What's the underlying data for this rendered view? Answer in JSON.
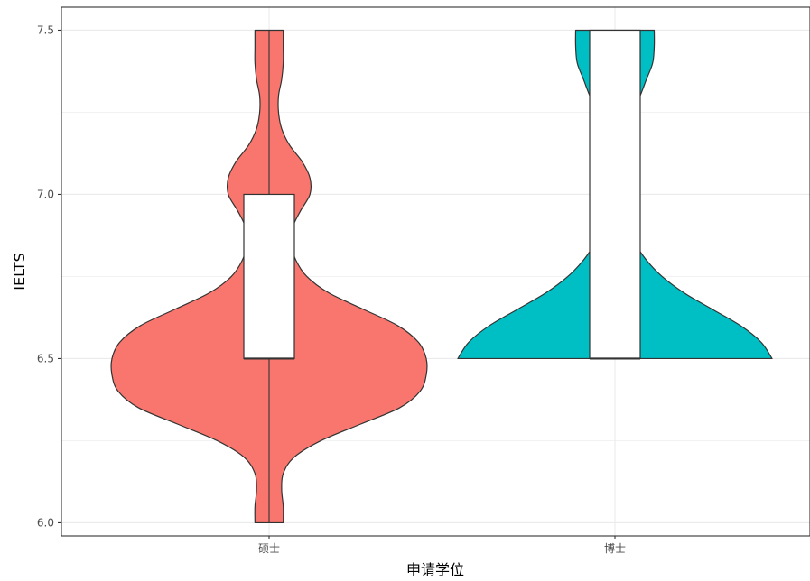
{
  "chart_data": {
    "type": "violin",
    "xlabel": "申请学位",
    "ylabel": "IELTS",
    "categories": [
      "硕士",
      "博士"
    ],
    "ylim": [
      5.96,
      7.57
    ],
    "yticks": [
      6.0,
      6.5,
      7.0,
      7.5
    ],
    "ytick_labels": [
      "6.0",
      "6.5",
      "7.0",
      "7.5"
    ],
    "grid": true,
    "series": [
      {
        "color": "#F8766D",
        "range": [
          6.0,
          7.5
        ],
        "box": {
          "min": 6.0,
          "q1": 6.5,
          "median": 6.5,
          "q3": 7.0,
          "max": 7.5
        },
        "density": [
          [
            6.0,
            0.09
          ],
          [
            6.05,
            0.09
          ],
          [
            6.1,
            0.08
          ],
          [
            6.15,
            0.09
          ],
          [
            6.2,
            0.16
          ],
          [
            6.25,
            0.33
          ],
          [
            6.3,
            0.58
          ],
          [
            6.35,
            0.83
          ],
          [
            6.4,
            0.96
          ],
          [
            6.45,
            1.0
          ],
          [
            6.5,
            1.0
          ],
          [
            6.55,
            0.95
          ],
          [
            6.6,
            0.82
          ],
          [
            6.65,
            0.6
          ],
          [
            6.7,
            0.38
          ],
          [
            6.75,
            0.24
          ],
          [
            6.8,
            0.17
          ],
          [
            6.85,
            0.14
          ],
          [
            6.9,
            0.15
          ],
          [
            6.95,
            0.2
          ],
          [
            7.0,
            0.26
          ],
          [
            7.05,
            0.26
          ],
          [
            7.1,
            0.21
          ],
          [
            7.15,
            0.13
          ],
          [
            7.2,
            0.08
          ],
          [
            7.25,
            0.06
          ],
          [
            7.3,
            0.06
          ],
          [
            7.35,
            0.08
          ],
          [
            7.4,
            0.09
          ],
          [
            7.45,
            0.09
          ],
          [
            7.5,
            0.09
          ]
        ]
      },
      {
        "color": "#00BFC4",
        "range": [
          6.5,
          7.5
        ],
        "box": {
          "min": 6.5,
          "q1": 6.5,
          "median": 6.5,
          "q3": 7.5,
          "max": 7.5
        },
        "density": [
          [
            6.5,
            1.0
          ],
          [
            6.55,
            0.93
          ],
          [
            6.6,
            0.8
          ],
          [
            6.65,
            0.62
          ],
          [
            6.7,
            0.44
          ],
          [
            6.75,
            0.3
          ],
          [
            6.8,
            0.2
          ],
          [
            6.85,
            0.13
          ],
          [
            6.9,
            0.08
          ],
          [
            6.95,
            0.04
          ],
          [
            7.0,
            0.0
          ],
          [
            7.05,
            0.0
          ],
          [
            7.1,
            0.0
          ],
          [
            7.15,
            0.0
          ],
          [
            7.2,
            0.02
          ],
          [
            7.25,
            0.11
          ],
          [
            7.3,
            0.16
          ],
          [
            7.35,
            0.2
          ],
          [
            7.4,
            0.24
          ],
          [
            7.45,
            0.25
          ],
          [
            7.5,
            0.25
          ]
        ]
      }
    ]
  }
}
